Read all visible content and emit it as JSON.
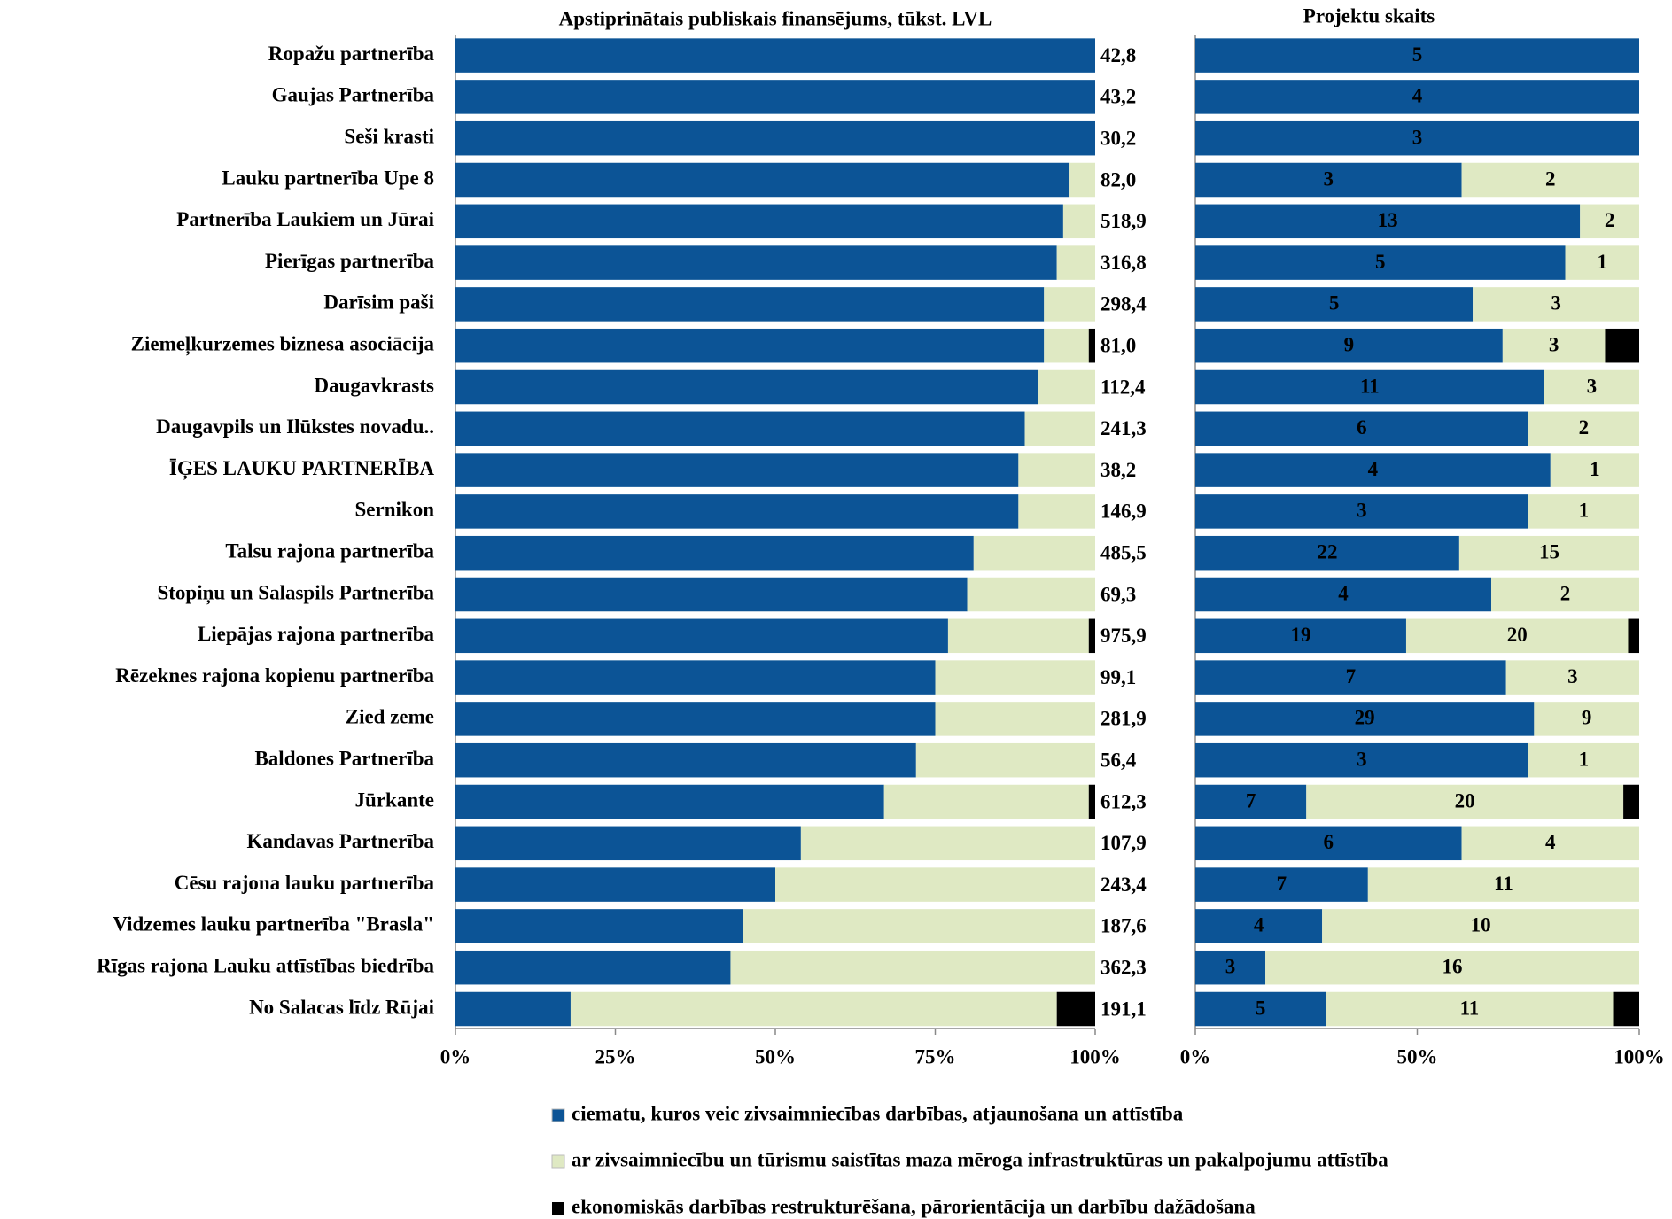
{
  "chart_data": [
    {
      "type": "bar",
      "orientation": "horizontal",
      "stacked": "percent",
      "title": "Apstiprinātais publiskais finansējums, tūkst. LVL",
      "categories": [
        "Ropažu partnerība",
        "Gaujas Partnerība",
        "Seši krasti",
        "Lauku partnerība Upe 8",
        "Partnerība Laukiem un Jūrai",
        "Pierīgas partnerība",
        "Darīsim paši",
        "Ziemeļkurzemes biznesa asociācija",
        "Daugavkrasts",
        "Daugavpils un Ilūkstes novadu..",
        "ĪĢES LAUKU PARTNERĪBA",
        "Sernikon",
        "Talsu rajona partnerība",
        "Stopiņu un Salaspils Partnerība",
        "Liepājas rajona partnerība",
        "Rēzeknes rajona kopienu partnerība",
        "Zied zeme",
        "Baldones Partnerība",
        "Jūrkante",
        "Kandavas Partnerība",
        "Cēsu rajona lauku partnerība",
        "Vidzemes lauku partnerība \"Brasla\"",
        "Rīgas rajona Lauku attīstības biedrība",
        "No Salacas līdz Rūjai"
      ],
      "series": [
        {
          "name": "ciematu, kuros veic zivsaimniecības darbības, atjaunošana un attīstība",
          "color": "#0c5496",
          "values": [
            100,
            100,
            100,
            96,
            95,
            94,
            92,
            92,
            91,
            89,
            88,
            88,
            81,
            80,
            77,
            75,
            75,
            72,
            67,
            54,
            50,
            45,
            43,
            18
          ]
        },
        {
          "name": "ar zivsaimniecību un tūrismu saistītas maza mēroga infrastruktūras un pakalpojumu attīstība",
          "color": "#dfe9c3",
          "values": [
            0,
            0,
            0,
            4,
            5,
            6,
            8,
            7,
            9,
            11,
            12,
            12,
            19,
            20,
            22,
            25,
            25,
            28,
            32,
            46,
            50,
            55,
            57,
            76
          ]
        },
        {
          "name": "ekonomiskās darbības restrukturēšana, pārorientācija un darbību dažādošana",
          "color": "#000000",
          "values": [
            0,
            0,
            0,
            0,
            0,
            0,
            0,
            1,
            0,
            0,
            0,
            0,
            0,
            0,
            1,
            0,
            0,
            0,
            1,
            0,
            0,
            0,
            0,
            6
          ]
        }
      ],
      "totals": {
        "values": [
          42.8,
          43.2,
          30.2,
          82.0,
          518.9,
          316.8,
          298.4,
          81.0,
          112.4,
          241.3,
          38.2,
          146.9,
          485.5,
          69.3,
          975.9,
          99.1,
          281.9,
          56.4,
          612.3,
          107.9,
          243.4,
          187.6,
          362.3,
          191.1
        ],
        "value_labels": [
          "42,8",
          "43,2",
          "30,2",
          "82,0",
          "518,9",
          "316,8",
          "298,4",
          "81,0",
          "112,4",
          "241,3",
          "38,2",
          "146,9",
          "485,5",
          "69,3",
          "975,9",
          "99,1",
          "281,9",
          "56,4",
          "612,3",
          "107,9",
          "243,4",
          "187,6",
          "362,3",
          "191,1"
        ]
      },
      "xlim": [
        0,
        100
      ],
      "xticks": [
        {
          "value": 0,
          "label": "0%"
        },
        {
          "value": 25,
          "label": "25%"
        },
        {
          "value": 50,
          "label": "50%"
        },
        {
          "value": 75,
          "label": "75%"
        },
        {
          "value": 100,
          "label": "100%"
        }
      ]
    },
    {
      "type": "bar",
      "orientation": "horizontal",
      "stacked": "percent",
      "data_labels": true,
      "title": "Projektu skaits",
      "series": [
        {
          "color": "#0c5496",
          "values": [
            5,
            4,
            3,
            3,
            13,
            5,
            5,
            9,
            11,
            6,
            4,
            3,
            22,
            4,
            19,
            7,
            29,
            3,
            7,
            6,
            7,
            4,
            3,
            5
          ]
        },
        {
          "color": "#dfe9c3",
          "values": [
            0,
            0,
            0,
            2,
            2,
            1,
            3,
            3,
            3,
            2,
            1,
            1,
            15,
            2,
            20,
            3,
            9,
            1,
            20,
            4,
            11,
            10,
            16,
            11
          ]
        },
        {
          "color": "#000000",
          "values": [
            0,
            0,
            0,
            0,
            0,
            0,
            0,
            1,
            0,
            0,
            0,
            0,
            0,
            0,
            1,
            0,
            0,
            0,
            1,
            0,
            0,
            0,
            0,
            1
          ]
        }
      ],
      "xlim": [
        0,
        100
      ],
      "xticks": [
        {
          "value": 0,
          "label": "0%"
        },
        {
          "value": 50,
          "label": "50%"
        },
        {
          "value": 100,
          "label": "100%"
        }
      ]
    }
  ]
}
